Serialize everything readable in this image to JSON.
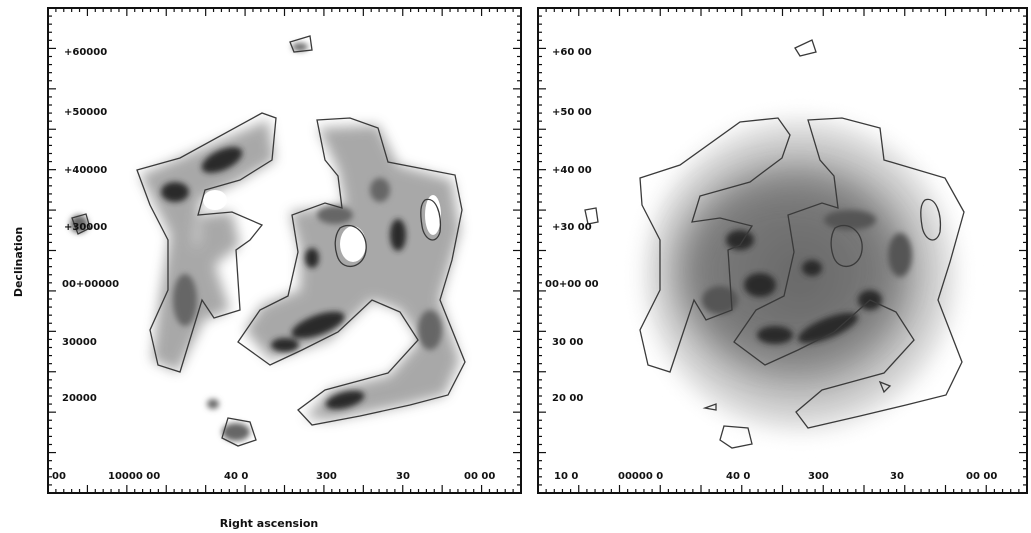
{
  "figure": {
    "ylabel": "Declination",
    "xlabel": "Right ascension"
  },
  "panels": [
    {
      "id": "left",
      "y_ticks": [
        "+60000",
        "+50000",
        "+40000",
        "+30000",
        "00+00000",
        "30000",
        "20000"
      ],
      "x_ticks": [
        "00",
        "10000 00",
        "40 0",
        "300",
        "30",
        "00 00"
      ]
    },
    {
      "id": "right",
      "y_ticks": [
        "+60 00",
        "+50 00",
        "+40 00",
        "+30 00",
        "00+00 00",
        "30 00",
        "20 00"
      ],
      "x_ticks": [
        "10 0",
        "00000 0",
        "40 0",
        "300",
        "30",
        "00 00"
      ]
    }
  ],
  "colors": {
    "frame": "#111111",
    "contour": "#3a3a3a",
    "emission_dark": "#1a1a1a",
    "emission_mid": "#7a7a7a",
    "emission_light": "#c8c8c8",
    "background": "#ffffff"
  }
}
